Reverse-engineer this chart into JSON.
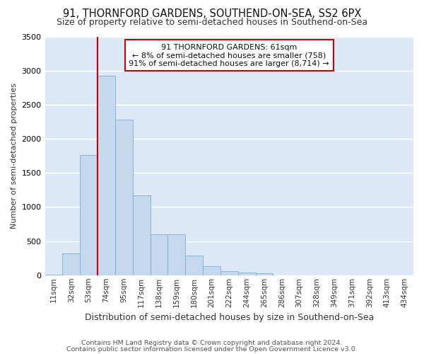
{
  "title": "91, THORNFORD GARDENS, SOUTHEND-ON-SEA, SS2 6PX",
  "subtitle": "Size of property relative to semi-detached houses in Southend-on-Sea",
  "xlabel": "Distribution of semi-detached houses by size in Southend-on-Sea",
  "ylabel": "Number of semi-detached properties",
  "footer1": "Contains HM Land Registry data © Crown copyright and database right 2024.",
  "footer2": "Contains public sector information licensed under the Open Government Licence v3.0.",
  "bin_labels": [
    "11sqm",
    "32sqm",
    "53sqm",
    "74sqm",
    "95sqm",
    "117sqm",
    "138sqm",
    "159sqm",
    "180sqm",
    "201sqm",
    "222sqm",
    "244sqm",
    "265sqm",
    "286sqm",
    "307sqm",
    "328sqm",
    "349sqm",
    "371sqm",
    "392sqm",
    "413sqm",
    "434sqm"
  ],
  "bar_heights": [
    5,
    315,
    1760,
    2920,
    2280,
    1170,
    600,
    600,
    290,
    130,
    65,
    42,
    28,
    0,
    0,
    0,
    0,
    0,
    0,
    0,
    0
  ],
  "bar_color": "#c5d8ed",
  "bar_edge_color": "#7aadd4",
  "vline_x": 2.5,
  "annotation_text_line1": "91 THORNFORD GARDENS: 61sqm",
  "annotation_text_line2": "← 8% of semi-detached houses are smaller (758)",
  "annotation_text_line3": "91% of semi-detached houses are larger (8,714) →",
  "annotation_box_facecolor": "#ffffff",
  "annotation_box_edgecolor": "#cc0000",
  "vline_color": "#cc0000",
  "ylim": [
    0,
    3500
  ],
  "plot_bg_color": "#dce8f5",
  "fig_bg_color": "#ffffff",
  "grid_color": "#ffffff",
  "title_fontsize": 10.5,
  "subtitle_fontsize": 9,
  "xlabel_fontsize": 9,
  "ylabel_fontsize": 8,
  "tick_fontsize": 7.5,
  "ann_fontsize": 8,
  "footer_fontsize": 6.8
}
